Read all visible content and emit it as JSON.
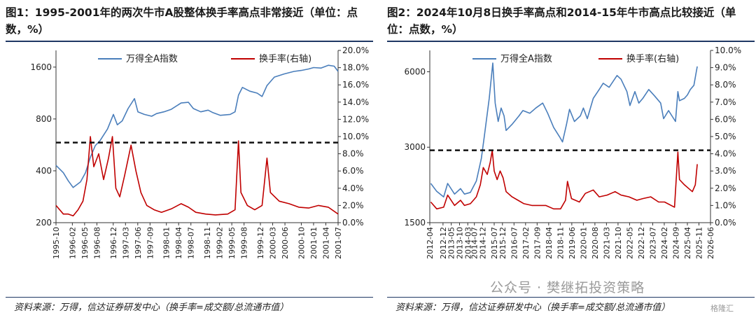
{
  "panels": [
    {
      "title": "图1：1995-2001年的两次牛市A股整体换手率高点非常接近（单位：点数，%）",
      "source": "资料来源：万得，信达证券研发中心（换手率=成交额/总流通市值）",
      "chart_data": {
        "type": "line",
        "legend_position": "top",
        "series": [
          {
            "name": "万得全A指数",
            "axis": "left",
            "color": "#4a7ebb",
            "values": [
              [
                1995.75,
                430
              ],
              [
                1995.9,
                390
              ],
              [
                1996.0,
                350
              ],
              [
                1996.1,
                320
              ],
              [
                1996.25,
                345
              ],
              [
                1996.35,
                390
              ],
              [
                1996.45,
                480
              ],
              [
                1996.55,
                560
              ],
              [
                1996.65,
                600
              ],
              [
                1996.8,
                700
              ],
              [
                1996.92,
                850
              ],
              [
                1997.0,
                740
              ],
              [
                1997.1,
                780
              ],
              [
                1997.22,
                920
              ],
              [
                1997.35,
                1050
              ],
              [
                1997.42,
                880
              ],
              [
                1997.55,
                850
              ],
              [
                1997.7,
                830
              ],
              [
                1997.8,
                860
              ],
              [
                1997.95,
                880
              ],
              [
                1998.1,
                910
              ],
              [
                1998.3,
                990
              ],
              [
                1998.45,
                1000
              ],
              [
                1998.55,
                920
              ],
              [
                1998.7,
                880
              ],
              [
                1998.85,
                900
              ],
              [
                1998.95,
                870
              ],
              [
                1999.1,
                840
              ],
              [
                1999.3,
                850
              ],
              [
                1999.4,
                880
              ],
              [
                1999.47,
                1100
              ],
              [
                1999.55,
                1220
              ],
              [
                1999.7,
                1160
              ],
              [
                1999.85,
                1130
              ],
              [
                1999.95,
                1080
              ],
              [
                2000.05,
                1250
              ],
              [
                2000.2,
                1400
              ],
              [
                2000.4,
                1460
              ],
              [
                2000.6,
                1510
              ],
              [
                2000.75,
                1530
              ],
              [
                2000.9,
                1560
              ],
              [
                2001.0,
                1590
              ],
              [
                2001.15,
                1580
              ],
              [
                2001.3,
                1640
              ],
              [
                2001.42,
                1620
              ],
              [
                2001.5,
                1510
              ]
            ]
          },
          {
            "name": "换手率(右轴)",
            "axis": "right",
            "color": "#c00000",
            "values": [
              [
                1995.75,
                2.0
              ],
              [
                1995.9,
                1.0
              ],
              [
                1996.0,
                1.0
              ],
              [
                1996.1,
                0.8
              ],
              [
                1996.2,
                1.5
              ],
              [
                1996.3,
                2.5
              ],
              [
                1996.38,
                5.0
              ],
              [
                1996.45,
                10.0
              ],
              [
                1996.52,
                6.5
              ],
              [
                1996.62,
                8.0
              ],
              [
                1996.72,
                5.0
              ],
              [
                1996.82,
                7.5
              ],
              [
                1996.9,
                10.0
              ],
              [
                1996.97,
                4.0
              ],
              [
                1997.05,
                3.0
              ],
              [
                1997.15,
                5.5
              ],
              [
                1997.28,
                9.0
              ],
              [
                1997.38,
                6.0
              ],
              [
                1997.48,
                3.5
              ],
              [
                1997.6,
                2.0
              ],
              [
                1997.75,
                1.5
              ],
              [
                1997.9,
                1.2
              ],
              [
                1998.1,
                1.6
              ],
              [
                1998.3,
                2.2
              ],
              [
                1998.45,
                1.8
              ],
              [
                1998.6,
                1.2
              ],
              [
                1998.8,
                1.0
              ],
              [
                1999.0,
                0.9
              ],
              [
                1999.25,
                1.0
              ],
              [
                1999.4,
                1.5
              ],
              [
                1999.47,
                9.5
              ],
              [
                1999.52,
                3.5
              ],
              [
                1999.65,
                2.0
              ],
              [
                1999.8,
                1.5
              ],
              [
                1999.95,
                2.0
              ],
              [
                2000.05,
                7.5
              ],
              [
                2000.12,
                3.5
              ],
              [
                2000.3,
                2.5
              ],
              [
                2000.5,
                2.2
              ],
              [
                2000.7,
                1.8
              ],
              [
                2000.9,
                1.7
              ],
              [
                2001.1,
                2.0
              ],
              [
                2001.3,
                1.8
              ],
              [
                2001.5,
                1.0
              ]
            ]
          }
        ],
        "left_axis": {
          "ticks": [
            "1600",
            "800",
            "400",
            "200"
          ]
        },
        "right_axis": {
          "ticks": [
            "20.0%",
            "18.0%",
            "16.0%",
            "14.0%",
            "12.0%",
            "10.0%",
            "8.0%",
            "6.0%",
            "4.0%",
            "2.0%",
            "0.0%"
          ]
        },
        "x_ticks": [
          "1995-10",
          "1996-02",
          "1996-05",
          "1996-08",
          "1996-12",
          "1997-03",
          "1997-06",
          "1997-09",
          "1998-01",
          "1998-04",
          "1998-07",
          "1998-11",
          "1999-02",
          "1999-05",
          "1999-08",
          "1999-12",
          "2000-03",
          "2000-06",
          "2000-10",
          "2001-01",
          "2001-04",
          "2001-07"
        ],
        "reference_line": {
          "axis": "right",
          "value": 9.3
        }
      }
    },
    {
      "title": "图2：2024年10月8日换手率高点和2014-15年牛市高点比较接近（单位：点数，%）",
      "source": "资料来源：万得，信达证券研发中心（换手率=成交额/总流通市值）",
      "chart_data": {
        "type": "line",
        "legend_position": "top",
        "series": [
          {
            "name": "万得全A指数",
            "axis": "left",
            "color": "#4a7ebb",
            "values": [
              [
                2012.3,
                2150
              ],
              [
                2012.6,
                2000
              ],
              [
                2012.95,
                1900
              ],
              [
                2013.15,
                2150
              ],
              [
                2013.5,
                1950
              ],
              [
                2013.8,
                2050
              ],
              [
                2014.0,
                1950
              ],
              [
                2014.3,
                1980
              ],
              [
                2014.6,
                2200
              ],
              [
                2014.85,
                2700
              ],
              [
                2015.0,
                3300
              ],
              [
                2015.25,
                4700
              ],
              [
                2015.43,
                6500
              ],
              [
                2015.55,
                4500
              ],
              [
                2015.7,
                3800
              ],
              [
                2015.85,
                4300
              ],
              [
                2016.0,
                4000
              ],
              [
                2016.1,
                3500
              ],
              [
                2016.4,
                3700
              ],
              [
                2016.75,
                4000
              ],
              [
                2016.95,
                4200
              ],
              [
                2017.3,
                4100
              ],
              [
                2017.6,
                4300
              ],
              [
                2017.95,
                4500
              ],
              [
                2018.2,
                4100
              ],
              [
                2018.5,
                3600
              ],
              [
                2018.8,
                3300
              ],
              [
                2018.95,
                3150
              ],
              [
                2019.15,
                3700
              ],
              [
                2019.3,
                4250
              ],
              [
                2019.55,
                3800
              ],
              [
                2019.85,
                4000
              ],
              [
                2020.0,
                4300
              ],
              [
                2020.2,
                3900
              ],
              [
                2020.5,
                4700
              ],
              [
                2020.8,
                5100
              ],
              [
                2021.0,
                5400
              ],
              [
                2021.3,
                5200
              ],
              [
                2021.7,
                5800
              ],
              [
                2021.9,
                5600
              ],
              [
                2022.2,
                5000
              ],
              [
                2022.35,
                4400
              ],
              [
                2022.6,
                5000
              ],
              [
                2022.8,
                4500
              ],
              [
                2023.0,
                4700
              ],
              [
                2023.3,
                5100
              ],
              [
                2023.6,
                4800
              ],
              [
                2023.9,
                4500
              ],
              [
                2024.05,
                3900
              ],
              [
                2024.3,
                4200
              ],
              [
                2024.65,
                3800
              ],
              [
                2024.77,
                5000
              ],
              [
                2024.85,
                4600
              ],
              [
                2025.1,
                4700
              ],
              [
                2025.25,
                4850
              ],
              [
                2025.4,
                5100
              ],
              [
                2025.58,
                5300
              ],
              [
                2025.7,
                6000
              ],
              [
                2025.75,
                6300
              ]
            ]
          },
          {
            "name": "换手率(右轴)",
            "axis": "right",
            "color": "#c00000",
            "values": [
              [
                2012.3,
                1.2
              ],
              [
                2012.6,
                0.8
              ],
              [
                2012.95,
                0.9
              ],
              [
                2013.15,
                1.6
              ],
              [
                2013.5,
                1.0
              ],
              [
                2013.8,
                1.3
              ],
              [
                2014.0,
                1.0
              ],
              [
                2014.3,
                1.1
              ],
              [
                2014.6,
                1.5
              ],
              [
                2014.8,
                2.2
              ],
              [
                2014.95,
                3.2
              ],
              [
                2015.15,
                2.8
              ],
              [
                2015.3,
                3.5
              ],
              [
                2015.4,
                4.2
              ],
              [
                2015.5,
                3.0
              ],
              [
                2015.65,
                2.5
              ],
              [
                2015.8,
                3.0
              ],
              [
                2015.95,
                2.6
              ],
              [
                2016.1,
                1.8
              ],
              [
                2016.4,
                1.5
              ],
              [
                2016.7,
                1.3
              ],
              [
                2017.0,
                1.1
              ],
              [
                2017.4,
                1.0
              ],
              [
                2017.8,
                1.0
              ],
              [
                2018.1,
                1.0
              ],
              [
                2018.5,
                0.8
              ],
              [
                2018.85,
                0.8
              ],
              [
                2019.1,
                1.3
              ],
              [
                2019.2,
                2.4
              ],
              [
                2019.4,
                1.4
              ],
              [
                2019.8,
                1.2
              ],
              [
                2020.1,
                1.7
              ],
              [
                2020.5,
                1.9
              ],
              [
                2020.8,
                1.5
              ],
              [
                2021.2,
                1.6
              ],
              [
                2021.6,
                1.8
              ],
              [
                2021.9,
                1.6
              ],
              [
                2022.3,
                1.5
              ],
              [
                2022.7,
                1.3
              ],
              [
                2023.0,
                1.4
              ],
              [
                2023.4,
                1.5
              ],
              [
                2023.8,
                1.2
              ],
              [
                2024.1,
                1.2
              ],
              [
                2024.6,
                0.9
              ],
              [
                2024.77,
                4.1
              ],
              [
                2024.85,
                2.5
              ],
              [
                2025.1,
                2.2
              ],
              [
                2025.3,
                2.0
              ],
              [
                2025.5,
                1.8
              ],
              [
                2025.65,
                2.2
              ],
              [
                2025.75,
                3.4
              ]
            ]
          }
        ],
        "left_axis": {
          "ticks": [
            "6000",
            "3000",
            "1500"
          ]
        },
        "right_axis": {
          "ticks": [
            "10.0%",
            "9.0%",
            "8.0%",
            "7.0%",
            "6.0%",
            "5.0%",
            "4.0%",
            "3.0%",
            "2.0%",
            "1.0%",
            "0.0%"
          ]
        },
        "x_ticks": [
          "2012-04",
          "2012-12",
          "2013-05",
          "2013-10",
          "2014-03",
          "2014-07",
          "2014-12",
          "2015-07",
          "2015-12",
          "2016-07",
          "2017-02",
          "2017-09",
          "2018-04",
          "2018-11",
          "2019-06",
          "2020-01",
          "2020-08",
          "2021-03",
          "2021-10",
          "2022-05",
          "2022-12",
          "2023-07",
          "2024-02",
          "2024-09",
          "2025-04",
          "2025-11",
          "2026-06"
        ],
        "reference_line": {
          "axis": "right",
          "value": 4.2
        }
      }
    }
  ],
  "watermark": "公众号 · 樊继拓投资策略",
  "watermark2": "格隆汇"
}
